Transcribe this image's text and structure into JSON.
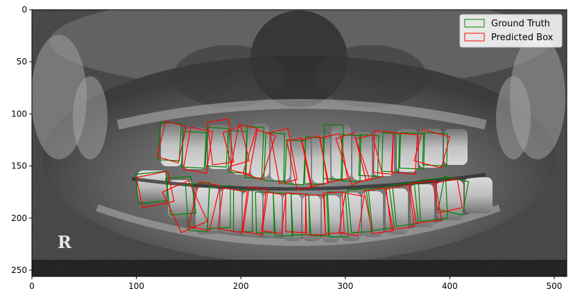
{
  "image_text": {
    "side_marker": "R"
  },
  "axes": {
    "x_ticks": [
      "0",
      "100",
      "200",
      "300",
      "400",
      "500"
    ],
    "y_ticks": [
      "0",
      "50",
      "100",
      "150",
      "200",
      "250"
    ],
    "x_range": [
      0,
      512
    ],
    "y_range": [
      256,
      0
    ]
  },
  "legend": {
    "position": "top-right",
    "entries": [
      {
        "label": "Ground Truth",
        "color": "#008000"
      },
      {
        "label": "Predicted Box",
        "color": "#ff0000"
      }
    ]
  },
  "colors": {
    "ground_truth": "#008000",
    "predicted_box": "#ff0000"
  },
  "boxes": {
    "ground_truth": [
      [
        [
          123,
          108
        ],
        [
          143,
          109
        ],
        [
          141,
          145
        ],
        [
          121,
          144
        ]
      ],
      [
        [
          145,
          117
        ],
        [
          167,
          118
        ],
        [
          165,
          152
        ],
        [
          143,
          151
        ]
      ],
      [
        [
          168,
          113
        ],
        [
          188,
          114
        ],
        [
          186,
          151
        ],
        [
          166,
          150
        ]
      ],
      [
        [
          189,
          116
        ],
        [
          206,
          117
        ],
        [
          205,
          157
        ],
        [
          188,
          156
        ]
      ],
      [
        [
          206,
          112
        ],
        [
          222,
          113
        ],
        [
          220,
          162
        ],
        [
          204,
          161
        ]
      ],
      [
        [
          224,
          118
        ],
        [
          242,
          119
        ],
        [
          241,
          165
        ],
        [
          222,
          164
        ]
      ],
      [
        [
          244,
          125
        ],
        [
          262,
          126
        ],
        [
          260,
          168
        ],
        [
          242,
          167
        ]
      ],
      [
        [
          262,
          122
        ],
        [
          279,
          123
        ],
        [
          279,
          168
        ],
        [
          261,
          167
        ]
      ],
      [
        [
          280,
          110
        ],
        [
          298,
          111
        ],
        [
          297,
          163
        ],
        [
          279,
          162
        ]
      ],
      [
        [
          297,
          120
        ],
        [
          315,
          121
        ],
        [
          314,
          165
        ],
        [
          296,
          164
        ]
      ],
      [
        [
          314,
          120
        ],
        [
          332,
          121
        ],
        [
          331,
          160
        ],
        [
          313,
          159
        ]
      ],
      [
        [
          336,
          118
        ],
        [
          352,
          119
        ],
        [
          351,
          156
        ],
        [
          335,
          155
        ]
      ],
      [
        [
          353,
          118
        ],
        [
          376,
          119
        ],
        [
          375,
          153
        ],
        [
          352,
          152
        ]
      ],
      [
        [
          375,
          118
        ],
        [
          398,
          119
        ],
        [
          397,
          150
        ],
        [
          374,
          149
        ]
      ],
      [
        [
          99,
          158
        ],
        [
          128,
          155
        ],
        [
          131,
          183
        ],
        [
          102,
          186
        ]
      ],
      [
        [
          128,
          162
        ],
        [
          152,
          160
        ],
        [
          157,
          195
        ],
        [
          133,
          197
        ]
      ],
      [
        [
          147,
          168
        ],
        [
          170,
          166
        ],
        [
          168,
          213
        ],
        [
          150,
          212
        ]
      ],
      [
        [
          170,
          170
        ],
        [
          190,
          169
        ],
        [
          190,
          209
        ],
        [
          168,
          210
        ]
      ],
      [
        [
          193,
          173
        ],
        [
          211,
          173
        ],
        [
          211,
          213
        ],
        [
          193,
          213
        ]
      ],
      [
        [
          214,
          175
        ],
        [
          231,
          175
        ],
        [
          232,
          214
        ],
        [
          215,
          214
        ]
      ],
      [
        [
          231,
          176
        ],
        [
          248,
          176
        ],
        [
          250,
          217
        ],
        [
          233,
          217
        ]
      ],
      [
        [
          248,
          177
        ],
        [
          265,
          177
        ],
        [
          266,
          216
        ],
        [
          249,
          216
        ]
      ],
      [
        [
          265,
          178
        ],
        [
          282,
          178
        ],
        [
          284,
          217
        ],
        [
          267,
          217
        ]
      ],
      [
        [
          283,
          175
        ],
        [
          300,
          175
        ],
        [
          303,
          218
        ],
        [
          285,
          218
        ]
      ],
      [
        [
          302,
          173
        ],
        [
          320,
          172
        ],
        [
          325,
          213
        ],
        [
          306,
          214
        ]
      ],
      [
        [
          322,
          172
        ],
        [
          342,
          170
        ],
        [
          347,
          209
        ],
        [
          326,
          212
        ]
      ],
      [
        [
          345,
          168
        ],
        [
          366,
          166
        ],
        [
          370,
          205
        ],
        [
          349,
          208
        ]
      ],
      [
        [
          370,
          164
        ],
        [
          396,
          161
        ],
        [
          398,
          200
        ],
        [
          372,
          203
        ]
      ],
      [
        [
          395,
          160
        ],
        [
          418,
          165
        ],
        [
          412,
          197
        ],
        [
          389,
          192
        ]
      ]
    ],
    "predicted": [
      [
        [
          128,
          107
        ],
        [
          148,
          112
        ],
        [
          140,
          147
        ],
        [
          120,
          141
        ]
      ],
      [
        [
          152,
          113
        ],
        [
          173,
          117
        ],
        [
          167,
          157
        ],
        [
          145,
          153
        ]
      ],
      [
        [
          168,
          108
        ],
        [
          188,
          105
        ],
        [
          193,
          146
        ],
        [
          173,
          149
        ]
      ],
      [
        [
          183,
          118
        ],
        [
          200,
          112
        ],
        [
          208,
          145
        ],
        [
          191,
          150
        ]
      ],
      [
        [
          198,
          110
        ],
        [
          216,
          114
        ],
        [
          208,
          158
        ],
        [
          190,
          154
        ]
      ],
      [
        [
          215,
          115
        ],
        [
          233,
          121
        ],
        [
          220,
          163
        ],
        [
          202,
          157
        ]
      ],
      [
        [
          228,
          118
        ],
        [
          245,
          114
        ],
        [
          254,
          163
        ],
        [
          237,
          167
        ]
      ],
      [
        [
          244,
          126
        ],
        [
          258,
          123
        ],
        [
          268,
          170
        ],
        [
          254,
          173
        ]
      ],
      [
        [
          258,
          125
        ],
        [
          275,
          121
        ],
        [
          284,
          166
        ],
        [
          267,
          170
        ]
      ],
      [
        [
          276,
          123
        ],
        [
          295,
          119
        ],
        [
          302,
          162
        ],
        [
          283,
          166
        ]
      ],
      [
        [
          291,
          124
        ],
        [
          308,
          118
        ],
        [
          323,
          162
        ],
        [
          306,
          168
        ]
      ],
      [
        [
          310,
          124
        ],
        [
          326,
          120
        ],
        [
          336,
          160
        ],
        [
          320,
          164
        ]
      ],
      [
        [
          328,
          116
        ],
        [
          346,
          118
        ],
        [
          345,
          158
        ],
        [
          327,
          156
        ]
      ],
      [
        [
          346,
          118
        ],
        [
          369,
          120
        ],
        [
          367,
          158
        ],
        [
          344,
          156
        ]
      ],
      [
        [
          374,
          115
        ],
        [
          400,
          122
        ],
        [
          392,
          152
        ],
        [
          366,
          145
        ]
      ],
      [
        [
          100,
          161
        ],
        [
          130,
          155
        ],
        [
          136,
          184
        ],
        [
          106,
          190
        ]
      ],
      [
        [
          125,
          175
        ],
        [
          150,
          164
        ],
        [
          168,
          203
        ],
        [
          143,
          214
        ]
      ],
      [
        [
          160,
          165
        ],
        [
          180,
          169
        ],
        [
          170,
          212
        ],
        [
          150,
          208
        ]
      ],
      [
        [
          183,
          171
        ],
        [
          206,
          175
        ],
        [
          201,
          214
        ],
        [
          178,
          210
        ]
      ],
      [
        [
          208,
          170
        ],
        [
          226,
          173
        ],
        [
          220,
          216
        ],
        [
          202,
          213
        ]
      ],
      [
        [
          224,
          175
        ],
        [
          243,
          178
        ],
        [
          239,
          215
        ],
        [
          220,
          212
        ]
      ],
      [
        [
          243,
          176
        ],
        [
          262,
          177
        ],
        [
          262,
          214
        ],
        [
          243,
          213
        ]
      ],
      [
        [
          262,
          178
        ],
        [
          280,
          178
        ],
        [
          281,
          216
        ],
        [
          263,
          216
        ]
      ],
      [
        [
          279,
          176
        ],
        [
          297,
          175
        ],
        [
          299,
          214
        ],
        [
          281,
          215
        ]
      ],
      [
        [
          300,
          176
        ],
        [
          318,
          179
        ],
        [
          312,
          217
        ],
        [
          294,
          214
        ]
      ],
      [
        [
          318,
          174
        ],
        [
          338,
          171
        ],
        [
          346,
          212
        ],
        [
          326,
          215
        ]
      ],
      [
        [
          339,
          172
        ],
        [
          361,
          168
        ],
        [
          366,
          208
        ],
        [
          344,
          211
        ]
      ],
      [
        [
          362,
          167
        ],
        [
          386,
          164
        ],
        [
          392,
          202
        ],
        [
          368,
          205
        ]
      ],
      [
        [
          384,
          167
        ],
        [
          407,
          162
        ],
        [
          412,
          190
        ],
        [
          389,
          195
        ]
      ]
    ]
  }
}
